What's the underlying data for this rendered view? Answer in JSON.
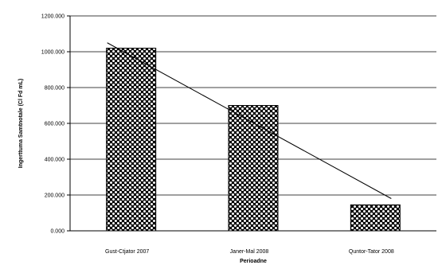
{
  "chart_data": {
    "type": "bar",
    "title": "",
    "xlabel": "Perioadne",
    "ylabel": "Ingerttuma Samtnotale (Cl Fd mL)",
    "categories": [
      "Gust-Ctjator 2007",
      "Janer-Mal 2008",
      "Quntor-Tator 2008"
    ],
    "values": [
      1020000,
      700000,
      145000
    ],
    "ylim": [
      0,
      1200000
    ],
    "yticks": [
      0,
      200000,
      400000,
      600000,
      800000,
      1000000,
      1200000
    ],
    "ytick_labels": [
      "0.000",
      "200.000",
      "400.000",
      "600.000",
      "800.000",
      "1000.000",
      "1200.000"
    ],
    "trendline": {
      "type": "linear",
      "start": 1050000,
      "end": 180000
    },
    "grid": true,
    "colors": {
      "bar_fill": "#ffffff",
      "bar_pattern": "#000000",
      "grid": "#000000",
      "trendline": "#000000"
    }
  }
}
